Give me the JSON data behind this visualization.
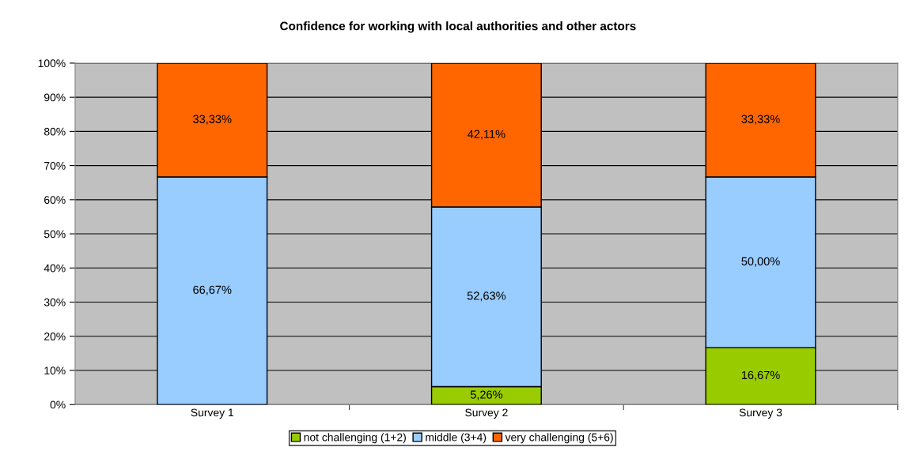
{
  "chart_data": {
    "type": "bar",
    "stacked": true,
    "title": "Confidence for working with local authorities and other actors",
    "categories": [
      "Survey 1",
      "Survey 2",
      "Survey 3"
    ],
    "series": [
      {
        "name": "not challenging (1+2)",
        "color": "#99cc00",
        "values": [
          0,
          5.26,
          16.67
        ],
        "value_labels": [
          null,
          "5,26%",
          "16,67%"
        ]
      },
      {
        "name": "middle (3+4)",
        "color": "#99ccff",
        "values": [
          66.67,
          52.63,
          50.0
        ],
        "value_labels": [
          "66,67%",
          "52,63%",
          "50,00%"
        ]
      },
      {
        "name": "very challenging (5+6)",
        "color": "#ff6600",
        "values": [
          33.33,
          42.11,
          33.33
        ],
        "value_labels": [
          "33,33%",
          "42,11%",
          "33,33%"
        ]
      }
    ],
    "ylim": [
      0,
      100
    ],
    "yticks": [
      {
        "value": 0,
        "label": "0%"
      },
      {
        "value": 10,
        "label": "10%"
      },
      {
        "value": 20,
        "label": "20%"
      },
      {
        "value": 30,
        "label": "30%"
      },
      {
        "value": 40,
        "label": "40%"
      },
      {
        "value": 50,
        "label": "50%"
      },
      {
        "value": 60,
        "label": "60%"
      },
      {
        "value": 70,
        "label": "70%"
      },
      {
        "value": 80,
        "label": "80%"
      },
      {
        "value": 90,
        "label": "90%"
      },
      {
        "value": 100,
        "label": "100%"
      }
    ],
    "grid": "y",
    "legend": "bottom"
  }
}
